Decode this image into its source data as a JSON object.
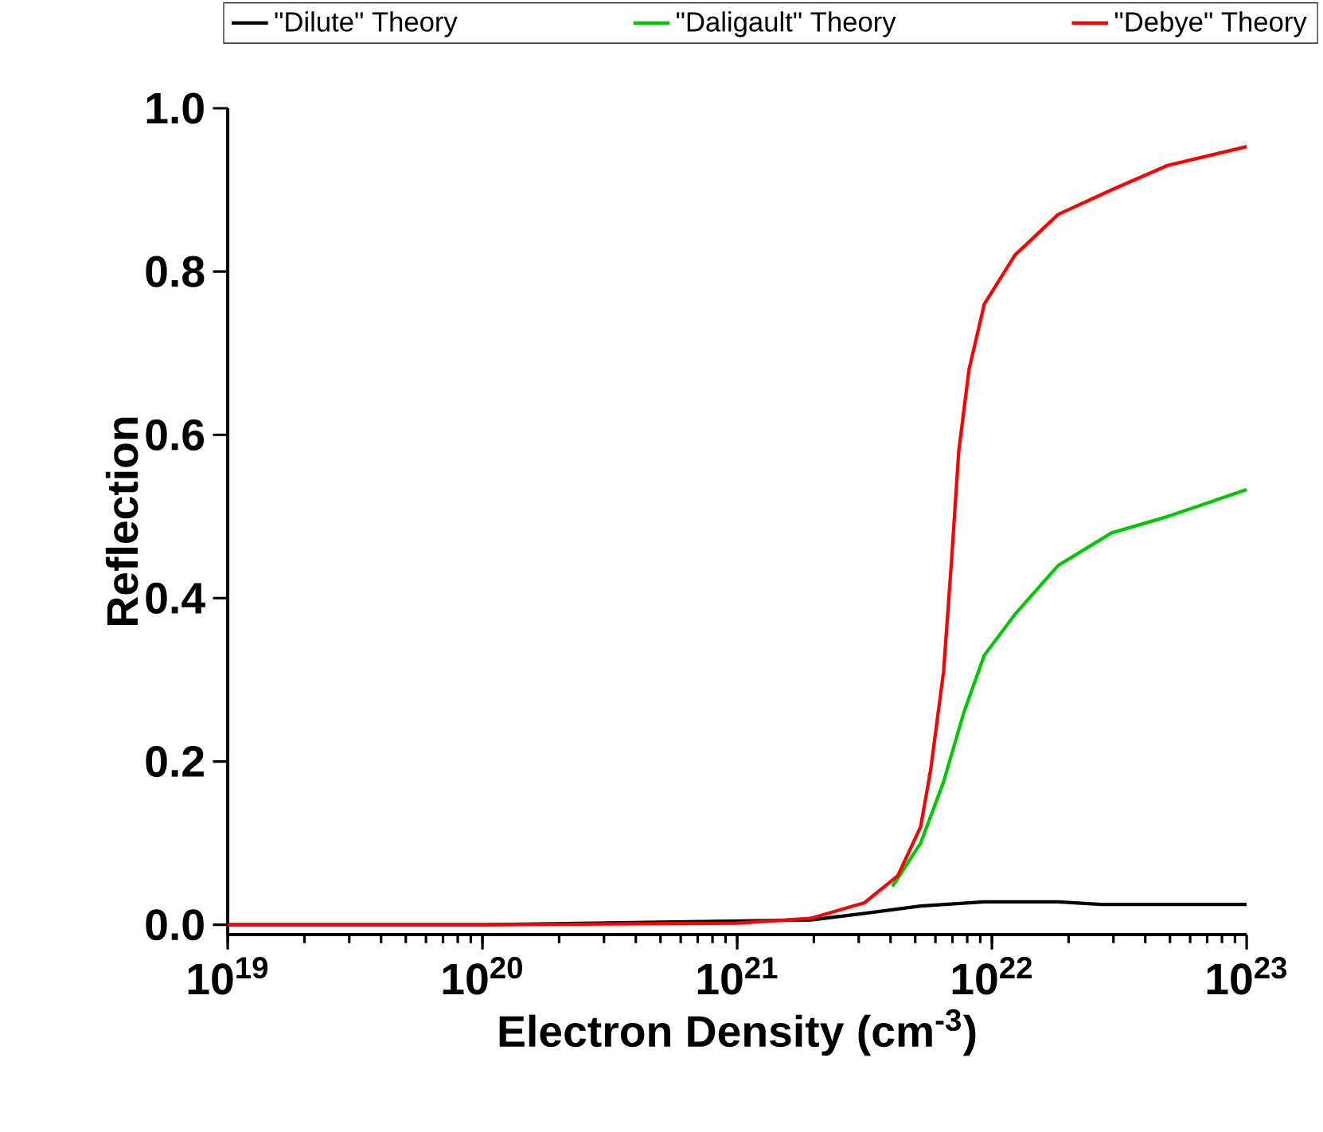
{
  "chart_data": {
    "type": "line",
    "xlabel": "Electron Density (cm$^{-3}$)",
    "ylabel": "Reflection",
    "log": "x",
    "xlim": [
      1e+19,
      1e+23
    ],
    "ylim": [
      -0.012,
      1.0
    ],
    "xticks": [
      {
        "value": 1e+19,
        "label": "10$^{19}$"
      },
      {
        "value": 1e+20,
        "label": "10$^{20}$"
      },
      {
        "value": 1e+21,
        "label": "10$^{21}$"
      },
      {
        "value": 1e+22,
        "label": "10$^{22}$"
      },
      {
        "value": 1e+23,
        "label": "10$^{23}$"
      }
    ],
    "yticks": [
      {
        "value": 0,
        "label": "0.0"
      },
      {
        "value": 0.2,
        "label": "0.2"
      },
      {
        "value": 0.4,
        "label": "0.4"
      },
      {
        "value": 0.6,
        "label": "0.6"
      },
      {
        "value": 0.8,
        "label": "0.8"
      },
      {
        "value": 1.0,
        "label": "1.0"
      }
    ],
    "legend": "top",
    "grid": false,
    "line_style": "solid",
    "series": [
      {
        "name": "\"Dilute\" Theory",
        "color": "#000000",
        "x": [
          1e+19,
          1e+20,
          1e+21,
          1.95e+21,
          3.16e+21,
          5.25e+21,
          9.33e+21,
          1.82e+22,
          2.69e+22,
          1e+23
        ],
        "values": [
          0,
          0,
          null,
          0.006,
          0.014,
          0.023,
          0.028,
          0.028,
          0.025,
          0.025
        ]
      },
      {
        "name": "\"Daligault\" Theory",
        "color": "#00c800",
        "x": [
          4.07e+21,
          5.25e+21,
          6.46e+21,
          7.76e+21,
          9.33e+21,
          1.23e+22,
          1.82e+22,
          2.95e+22,
          4.9e+22,
          1e+23
        ],
        "values": [
          0.047,
          0.1,
          0.175,
          0.26,
          0.33,
          0.38,
          0.44,
          0.48,
          0.5,
          0.533
        ]
      },
      {
        "name": "\"Debye\" Theory",
        "color": "#ff0000",
        "x": [
          1e+19,
          1e+20,
          1e+21,
          1.95e+21,
          3.16e+21,
          4.27e+21,
          5.25e+21,
          5.75e+21,
          6.46e+21,
          6.92e+21,
          7.41e+21,
          8.13e+21,
          9.33e+21,
          1.23e+22,
          1.82e+22,
          2.95e+22,
          4.9e+22,
          1e+23
        ],
        "values": [
          0,
          0,
          0.002,
          0.008,
          0.027,
          0.06,
          0.12,
          0.19,
          0.31,
          0.44,
          0.58,
          0.68,
          0.76,
          0.82,
          0.87,
          0.9,
          0.93,
          0.953
        ]
      }
    ]
  }
}
